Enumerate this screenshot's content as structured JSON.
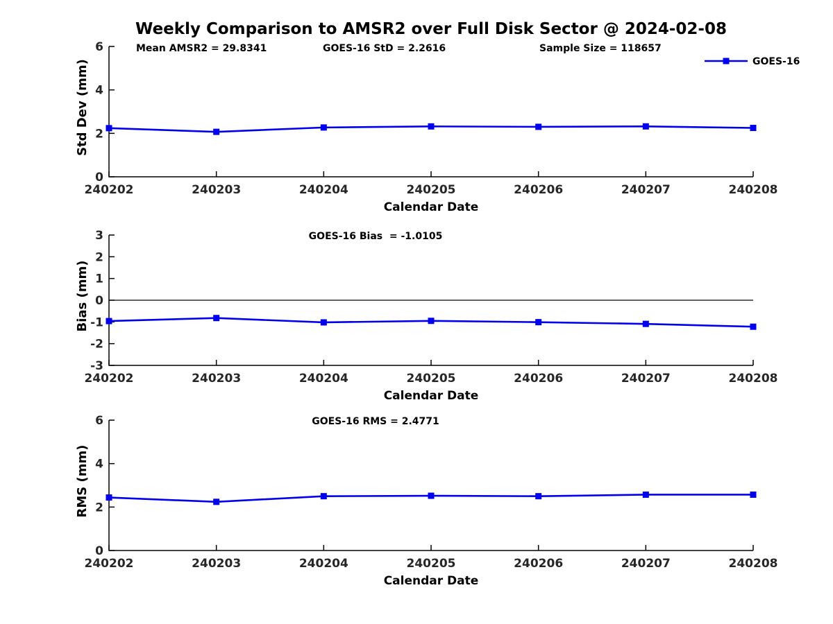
{
  "figure": {
    "title": "Weekly Comparison to AMSR2 over Full Disk Sector @ 2024-02-08"
  },
  "colors": {
    "line": "#0000EE",
    "marker": "#0000EE",
    "axis": "#000000",
    "text": "#262626",
    "title_text": "#000000",
    "zero_line": "#000000",
    "background": "#ffffff"
  },
  "legend": {
    "label": "GOES-16",
    "position": "top-right"
  },
  "chart_data": [
    {
      "type": "line",
      "name": "std-dev",
      "categories": [
        "240202",
        "240203",
        "240204",
        "240205",
        "240206",
        "240207",
        "240208"
      ],
      "series": [
        {
          "name": "GOES-16",
          "values": [
            2.24,
            2.07,
            2.27,
            2.32,
            2.3,
            2.32,
            2.25
          ]
        }
      ],
      "annotations": [
        "Mean AMSR2 = 29.8341",
        "GOES-16 StD = 2.2616",
        "Sample Size = 118657"
      ],
      "legend_label": "GOES-16",
      "xlabel": "Calendar Date",
      "ylabel": "Std Dev (mm)",
      "ylim": [
        0,
        6
      ],
      "yticks": [
        0,
        2,
        4,
        6
      ],
      "zero_line": false,
      "grid": false
    },
    {
      "type": "line",
      "name": "bias",
      "title": "GOES-16 Bias  = -1.0105",
      "categories": [
        "240202",
        "240203",
        "240204",
        "240205",
        "240206",
        "240207",
        "240208"
      ],
      "series": [
        {
          "name": "GOES-16",
          "values": [
            -0.96,
            -0.82,
            -1.02,
            -0.95,
            -1.01,
            -1.09,
            -1.22
          ]
        }
      ],
      "xlabel": "Calendar Date",
      "ylabel": "Bias (mm)",
      "ylim": [
        -3,
        3
      ],
      "yticks": [
        -3,
        -2,
        -1,
        0,
        1,
        2,
        3
      ],
      "zero_line": true,
      "grid": false
    },
    {
      "type": "line",
      "name": "rms",
      "title": "GOES-16 RMS = 2.4771",
      "categories": [
        "240202",
        "240203",
        "240204",
        "240205",
        "240206",
        "240207",
        "240208"
      ],
      "series": [
        {
          "name": "GOES-16",
          "values": [
            2.44,
            2.24,
            2.5,
            2.52,
            2.5,
            2.57,
            2.57
          ]
        }
      ],
      "xlabel": "Calendar Date",
      "ylabel": "RMS (mm)",
      "ylim": [
        0,
        6
      ],
      "yticks": [
        0,
        2,
        4,
        6
      ],
      "zero_line": false,
      "grid": false
    }
  ]
}
